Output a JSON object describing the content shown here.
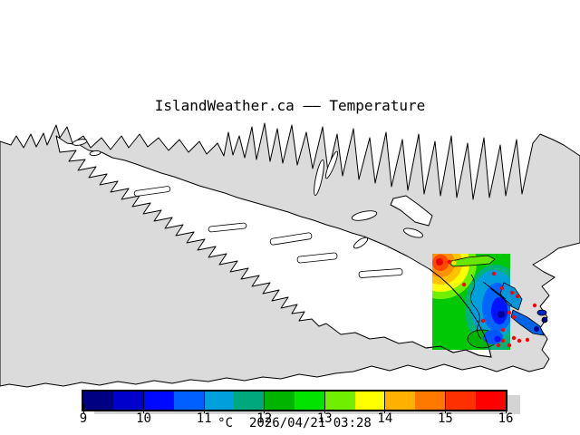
{
  "title": "IslandWeather.ca –– Temperature",
  "colorbar": {
    "unit_label": "°C",
    "timestamp": "2026/04/21 03:28",
    "tick_labels": [
      "9",
      "10",
      "11",
      "12",
      "13",
      "14",
      "15",
      "16"
    ],
    "cell_colors": [
      "#000082",
      "#0000CD",
      "#0008FF",
      "#0060FF",
      "#00A0DC",
      "#00A87D",
      "#00B400",
      "#00E400",
      "#70F000",
      "#FFFF00",
      "#FFB000",
      "#FF7800",
      "#FF3000",
      "#FF0000"
    ]
  },
  "map": {
    "water_color": "#dbdbdb",
    "land_color": "#ffffff",
    "coastline_color": "#000000",
    "station_marker_color": "#ff0000"
  },
  "chart_data": {
    "type": "heatmap",
    "title": "IslandWeather.ca –– Temperature",
    "timestamp": "2026/04/21 03:28",
    "colorbar": {
      "unit": "°C",
      "min": 9,
      "max": 16,
      "ticks": [
        9,
        10,
        11,
        12,
        13,
        14,
        15,
        16
      ],
      "cell_step": 0.5,
      "colors": [
        "#000082",
        "#0000CD",
        "#0008FF",
        "#0060FF",
        "#00A0DC",
        "#00A87D",
        "#00B400",
        "#00E400",
        "#70F000",
        "#FFFF00",
        "#FFB000",
        "#FF7800",
        "#FF3000",
        "#FF0000"
      ],
      "position": "bottom"
    }
  }
}
